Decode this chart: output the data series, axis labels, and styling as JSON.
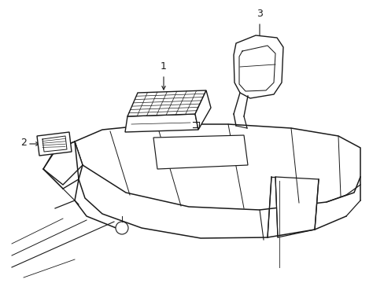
{
  "bg_color": "#ffffff",
  "line_color": "#1a1a1a",
  "lw": 0.9,
  "label_fontsize": 9
}
